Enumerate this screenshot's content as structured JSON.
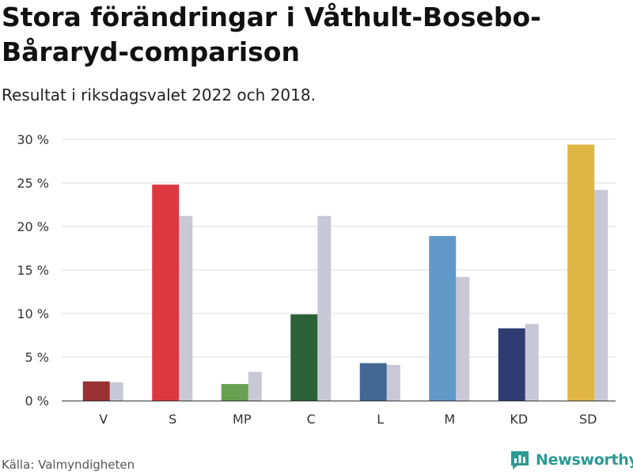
{
  "chart_data": {
    "type": "bar",
    "title": "Stora förändringar i Våthult-Bosebo-Båraryd-comparison",
    "subtitle": "Resultat i riksdagsvalet 2022 och 2018.",
    "categories": [
      "V",
      "S",
      "MP",
      "C",
      "L",
      "M",
      "KD",
      "SD"
    ],
    "series": [
      {
        "name": "2022",
        "values": [
          2.2,
          24.8,
          1.9,
          9.9,
          4.3,
          18.9,
          8.3,
          29.4
        ]
      },
      {
        "name": "2018",
        "values": [
          2.1,
          21.2,
          3.3,
          21.2,
          4.1,
          14.2,
          8.8,
          24.2
        ]
      }
    ],
    "colors_2022": [
      "#993333",
      "#dc3840",
      "#67a050",
      "#2a6236",
      "#436893",
      "#6299c8",
      "#2e3c72",
      "#dfb544"
    ],
    "color_2018": "#c8c8d6",
    "yticks": [
      "0 %",
      "5 %",
      "10 %",
      "15 %",
      "20 %",
      "25 %",
      "30 %"
    ],
    "ytick_values": [
      0,
      5,
      10,
      15,
      20,
      25,
      30
    ],
    "ylim": [
      0,
      30
    ],
    "grid": true,
    "xlabel": "",
    "ylabel": ""
  },
  "footer": {
    "source": "Källa: Valmyndigheten",
    "brand": "Newsworthy"
  }
}
